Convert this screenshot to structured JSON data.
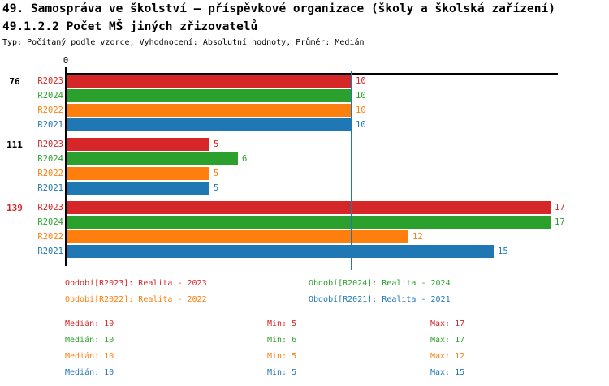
{
  "header": {
    "title": "49. Samospráva ve školství – příspěvkové organizace (školy a školská zařízení)",
    "subtitle": "49.1.2.2 Počet MŠ jiných zřizovatelů",
    "meta": "Typ: Počítaný podle vzorce, Vyhodnocení: Absolutní hodnoty, Průměr: Medián"
  },
  "colors": {
    "r2023": "#d62728",
    "r2024": "#2ca02c",
    "r2022": "#ff7f0e",
    "r2021": "#1f77b4",
    "axis": "#000000",
    "median_line": "#1f77b4",
    "group_label_default": "#000000",
    "group_label_highlight": "#d62728"
  },
  "chart_data": {
    "type": "bar",
    "orientation": "horizontal",
    "title": "49.1.2.2 Počet MŠ jiných zřizovatelů",
    "x_axis": {
      "zero_label": "0",
      "xlim": [
        0,
        17.3
      ],
      "grid": false
    },
    "median_marker_value": 10,
    "series_keys": [
      "r2023",
      "r2024",
      "r2022",
      "r2021"
    ],
    "series_labels": [
      "R2023",
      "R2024",
      "R2022",
      "R2021"
    ],
    "groups": [
      {
        "label": "76",
        "highlight": false,
        "values": [
          10,
          10,
          10,
          10
        ]
      },
      {
        "label": "111",
        "highlight": false,
        "values": [
          5,
          6,
          5,
          5
        ]
      },
      {
        "label": "139",
        "highlight": true,
        "values": [
          17,
          17,
          12,
          15
        ]
      }
    ]
  },
  "legend": {
    "items": [
      {
        "label": "Období[R2023]: Realita - 2023",
        "series": "r2023"
      },
      {
        "label": "Období[R2024]: Realita - 2024",
        "series": "r2024"
      },
      {
        "label": "Období[R2022]: Realita - 2022",
        "series": "r2022"
      },
      {
        "label": "Období[R2021]: Realita - 2021",
        "series": "r2021"
      }
    ]
  },
  "stats": {
    "rows": [
      {
        "series": "r2023",
        "median": "Medián: 10",
        "min": "Min: 5",
        "max": "Max: 17"
      },
      {
        "series": "r2024",
        "median": "Medián: 10",
        "min": "Min: 6",
        "max": "Max: 17"
      },
      {
        "series": "r2022",
        "median": "Medián: 10",
        "min": "Min: 5",
        "max": "Max: 12"
      },
      {
        "series": "r2021",
        "median": "Medián: 10",
        "min": "Min: 5",
        "max": "Max: 15"
      }
    ]
  }
}
